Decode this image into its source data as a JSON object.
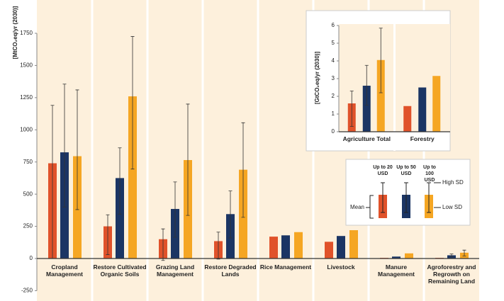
{
  "chart_data": [
    {
      "type": "bar",
      "y_label": "[MtCO₂eq/yr (2030)]",
      "categories": [
        "Cropland Management",
        "Restore Cultivated Organic Soils",
        "Grazing Land Management",
        "Restore Degraded Lands",
        "Rice Management",
        "Livestock",
        "Manure Management",
        "Agroforestry and Regrowth on Remaining Land"
      ],
      "series": [
        {
          "name": "Up to 20 USD",
          "color": "#e0522a",
          "values": [
            740,
            250,
            150,
            135,
            170,
            130,
            5,
            5
          ],
          "sd_low": [
            0,
            30,
            -15,
            -5,
            null,
            null,
            null,
            null
          ],
          "sd_high": [
            1190,
            340,
            230,
            205,
            null,
            null,
            null,
            null
          ]
        },
        {
          "name": "Up to 50 USD",
          "color": "#1b3564",
          "values": [
            825,
            625,
            385,
            345,
            180,
            175,
            15,
            25
          ],
          "sd_low": [
            400,
            345,
            165,
            160,
            null,
            null,
            null,
            15
          ],
          "sd_high": [
            1355,
            860,
            595,
            525,
            null,
            null,
            null,
            35
          ]
        },
        {
          "name": "Up to 100 USD",
          "color": "#f5a623",
          "values": [
            795,
            1260,
            765,
            690,
            205,
            220,
            40,
            45
          ],
          "sd_low": [
            380,
            695,
            335,
            320,
            null,
            null,
            null,
            20
          ],
          "sd_high": [
            1310,
            1725,
            1200,
            1055,
            null,
            null,
            null,
            65
          ]
        }
      ],
      "ylim": [
        -250,
        1750
      ],
      "yticks": [
        -250,
        0,
        250,
        500,
        750,
        1000,
        1250,
        1500,
        1750
      ]
    },
    {
      "type": "bar",
      "y_label": "[GtCO₂eq/yr (2030)]",
      "categories": [
        "Agriculture Total",
        "Forestry"
      ],
      "series": [
        {
          "color": "#e0522a",
          "values": [
            1.6,
            1.45
          ],
          "sd_low": [
            0.3,
            null
          ],
          "sd_high": [
            2.3,
            null
          ]
        },
        {
          "color": "#1b3564",
          "values": [
            2.6,
            2.5
          ],
          "sd_low": [
            1.5,
            null
          ],
          "sd_high": [
            3.75,
            null
          ]
        },
        {
          "color": "#f5a623",
          "values": [
            4.05,
            3.15
          ],
          "sd_low": [
            2.2,
            null
          ],
          "sd_high": [
            5.85,
            null
          ]
        }
      ],
      "ylim": [
        0,
        6
      ],
      "yticks": [
        0,
        1,
        2,
        3,
        4,
        5,
        6
      ]
    }
  ],
  "legend": {
    "mean": "Mean",
    "high_sd": "High SD",
    "low_sd": "Low SD"
  }
}
